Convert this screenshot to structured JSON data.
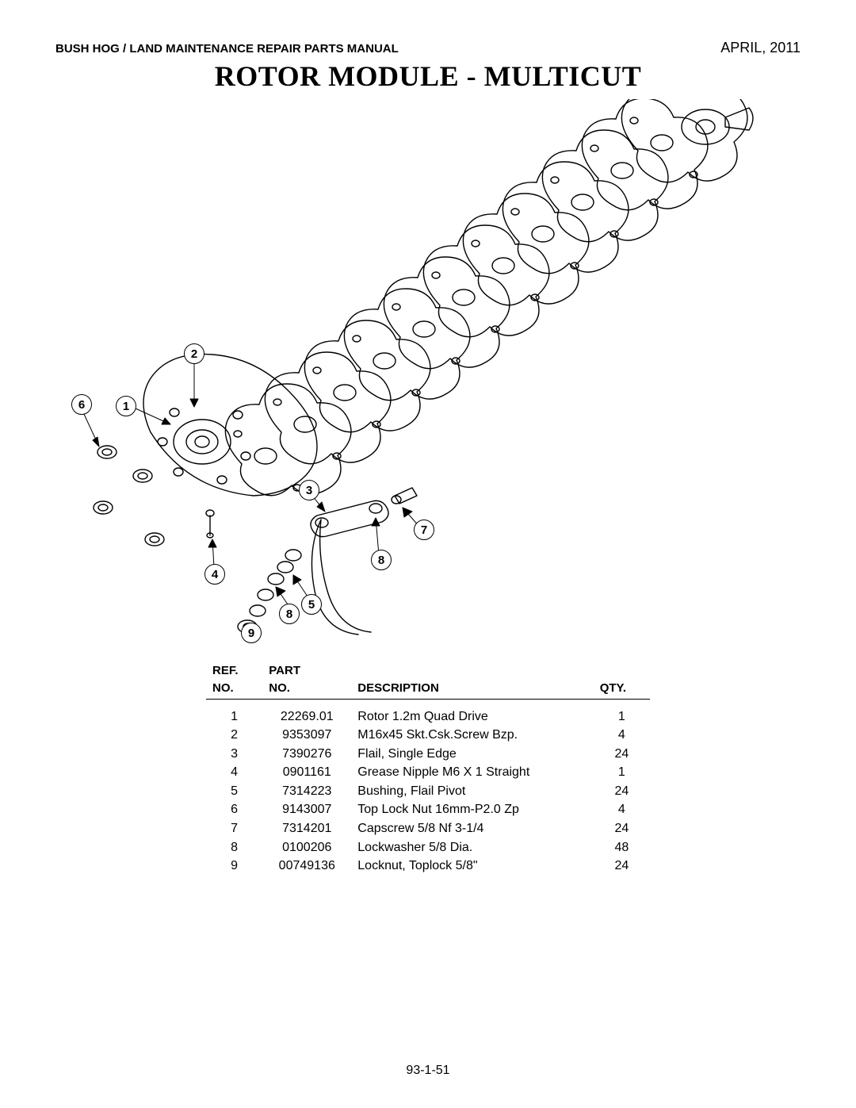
{
  "header": {
    "manual_title": "BUSH HOG / LAND MAINTENANCE REPAIR PARTS MANUAL",
    "date": "APRIL, 2011"
  },
  "title": "ROTOR MODULE - MULTICUT",
  "callouts": {
    "c1": "1",
    "c2": "2",
    "c3": "3",
    "c4": "4",
    "c5": "5",
    "c6": "6",
    "c7": "7",
    "c8a": "8",
    "c8b": "8",
    "c9": "9"
  },
  "table": {
    "headers": {
      "ref_line1": "REF.",
      "ref_line2": "NO.",
      "part_line1": "PART",
      "part_line2": "NO.",
      "desc": "DESCRIPTION",
      "qty": "QTY."
    },
    "rows": [
      {
        "ref": "1",
        "part": "22269.01",
        "desc": "Rotor 1.2m Quad Drive",
        "qty": "1"
      },
      {
        "ref": "2",
        "part": "9353097",
        "desc": "M16x45 Skt.Csk.Screw Bzp.",
        "qty": "4"
      },
      {
        "ref": "3",
        "part": "7390276",
        "desc": "Flail, Single Edge",
        "qty": "24"
      },
      {
        "ref": "4",
        "part": "0901161",
        "desc": " Grease Nipple M6 X 1 Straight",
        "qty": "1"
      },
      {
        "ref": "5",
        "part": "7314223",
        "desc": "Bushing, Flail Pivot",
        "qty": "24"
      },
      {
        "ref": "6",
        "part": "9143007",
        "desc": "Top Lock Nut 16mm-P2.0  Zp",
        "qty": "4"
      },
      {
        "ref": "7",
        "part": "7314201",
        "desc": "Capscrew  5/8 Nf 3-1/4",
        "qty": "24"
      },
      {
        "ref": "8",
        "part": "0100206",
        "desc": "Lockwasher 5/8 Dia.",
        "qty": "48"
      },
      {
        "ref": "9",
        "part": "00749136",
        "desc": "Locknut, Toplock 5/8\"",
        "qty": "24"
      }
    ]
  },
  "page_number": "93-1-51",
  "style": {
    "background": "#ffffff",
    "text_color": "#000000",
    "rule_color": "#000000",
    "title_font": "Times New Roman",
    "body_font": "Arial",
    "title_fontsize_pt": 27,
    "header_fontsize_pt": 11,
    "body_fontsize_pt": 12
  }
}
